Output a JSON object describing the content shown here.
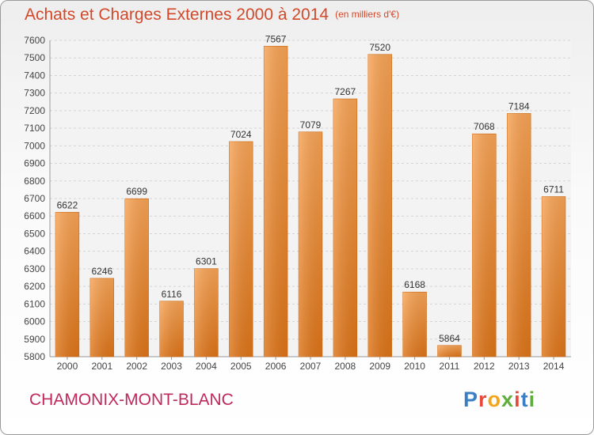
{
  "chart_data": {
    "type": "bar",
    "title": "Achats et Charges Externes 2000 à 2014",
    "subtitle": "(en milliers d'€)",
    "categories": [
      "2000",
      "2001",
      "2002",
      "2003",
      "2004",
      "2005",
      "2006",
      "2007",
      "2008",
      "2009",
      "2010",
      "2011",
      "2012",
      "2013",
      "2014"
    ],
    "values": [
      6622,
      6246,
      6699,
      6116,
      6301,
      7024,
      7567,
      7079,
      7267,
      7520,
      6168,
      5864,
      7068,
      7184,
      6711
    ],
    "ylim": [
      5800,
      7600
    ],
    "yticks": [
      5800,
      5900,
      6000,
      6100,
      6200,
      6300,
      6400,
      6500,
      6600,
      6700,
      6800,
      6900,
      7000,
      7100,
      7200,
      7300,
      7400,
      7500,
      7600
    ],
    "grid": true,
    "bar_color": "#f0902e",
    "xlabel": "",
    "ylabel": ""
  },
  "footer": {
    "city": "CHAMONIX-MONT-BLANC",
    "logo_text": "Proxiti",
    "logo_colors": [
      "#3a7fc4",
      "#e8493b",
      "#f2a51a",
      "#5fae3d",
      "#e8493b",
      "#3a7fc4",
      "#5fae3d"
    ]
  }
}
